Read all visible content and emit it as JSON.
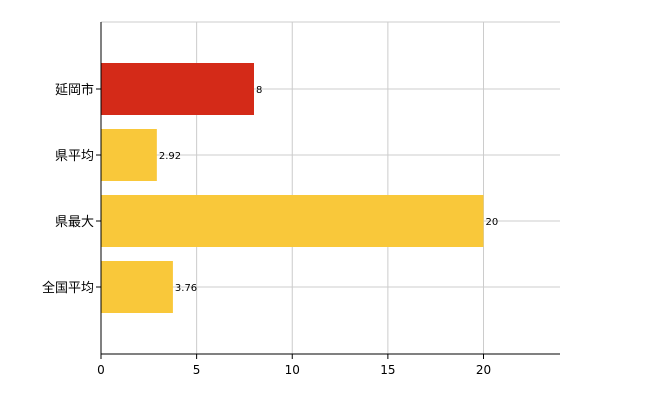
{
  "chart_data": {
    "type": "bar",
    "orientation": "horizontal",
    "categories": [
      "延岡市",
      "県平均",
      "県最大",
      "全国平均"
    ],
    "values": [
      8,
      2.92,
      20,
      3.76
    ],
    "value_labels": [
      "8",
      "2.92",
      "20",
      "3.76"
    ],
    "xlim": [
      0,
      24
    ],
    "xticks": [
      0,
      5,
      10,
      15,
      20
    ],
    "xtick_labels": [
      "0",
      "5",
      "10",
      "15",
      "20"
    ],
    "grid": true,
    "colors": {
      "highlight": "#d42a18",
      "normal": "#f9c83a",
      "grid": "#cccccc",
      "axis": "#000000"
    },
    "bar_colors": [
      "highlight",
      "normal",
      "normal",
      "normal"
    ]
  }
}
